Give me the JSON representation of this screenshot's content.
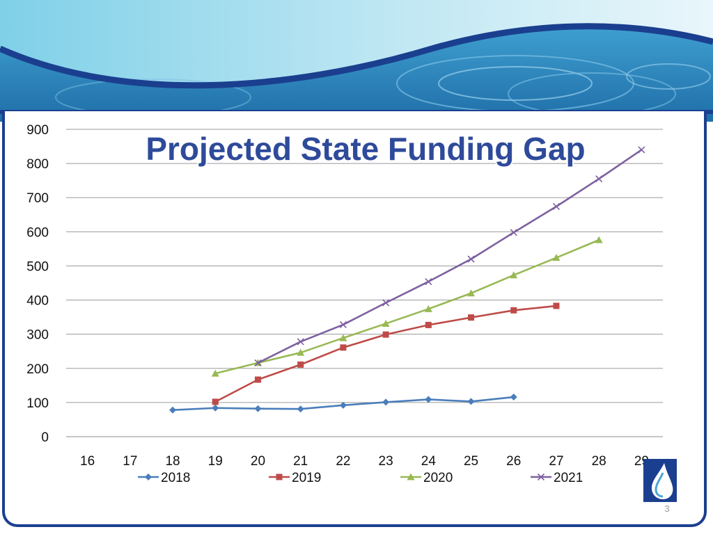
{
  "page_number": "3",
  "colors": {
    "frame": "#1b3f8f",
    "title": "#2e4a9a",
    "s2018": "#4a7ebb",
    "s2019": "#be4b48",
    "s2020": "#98b954",
    "s2021": "#7d60a0"
  },
  "chart_data": {
    "type": "line",
    "title": "Projected State Funding Gap",
    "xlabel": "",
    "ylabel": "",
    "x": [
      "16",
      "17",
      "18",
      "19",
      "20",
      "21",
      "22",
      "23",
      "24",
      "25",
      "26",
      "27",
      "28",
      "29"
    ],
    "ylim": [
      0,
      900
    ],
    "yticks": [
      "0",
      "100",
      "200",
      "300",
      "400",
      "500",
      "600",
      "700",
      "800",
      "900"
    ],
    "grid": true,
    "legend": "bottom",
    "series": [
      {
        "name": "2018",
        "marker": "diamond",
        "color": "#4a7ebb",
        "values": [
          null,
          null,
          78,
          84,
          82,
          81,
          92,
          101,
          109,
          103,
          116,
          null,
          null,
          null
        ]
      },
      {
        "name": "2019",
        "marker": "square",
        "color": "#be4b48",
        "values": [
          null,
          null,
          null,
          102,
          167,
          211,
          261,
          299,
          327,
          349,
          370,
          383,
          null,
          null
        ]
      },
      {
        "name": "2020",
        "marker": "triangle",
        "color": "#98b954",
        "values": [
          null,
          null,
          null,
          185,
          216,
          246,
          289,
          331,
          374,
          420,
          473,
          524,
          576,
          null
        ]
      },
      {
        "name": "2021",
        "marker": "x",
        "color": "#7d60a0",
        "values": [
          null,
          null,
          null,
          null,
          216,
          278,
          328,
          392,
          454,
          520,
          598,
          674,
          755,
          840
        ]
      }
    ]
  }
}
